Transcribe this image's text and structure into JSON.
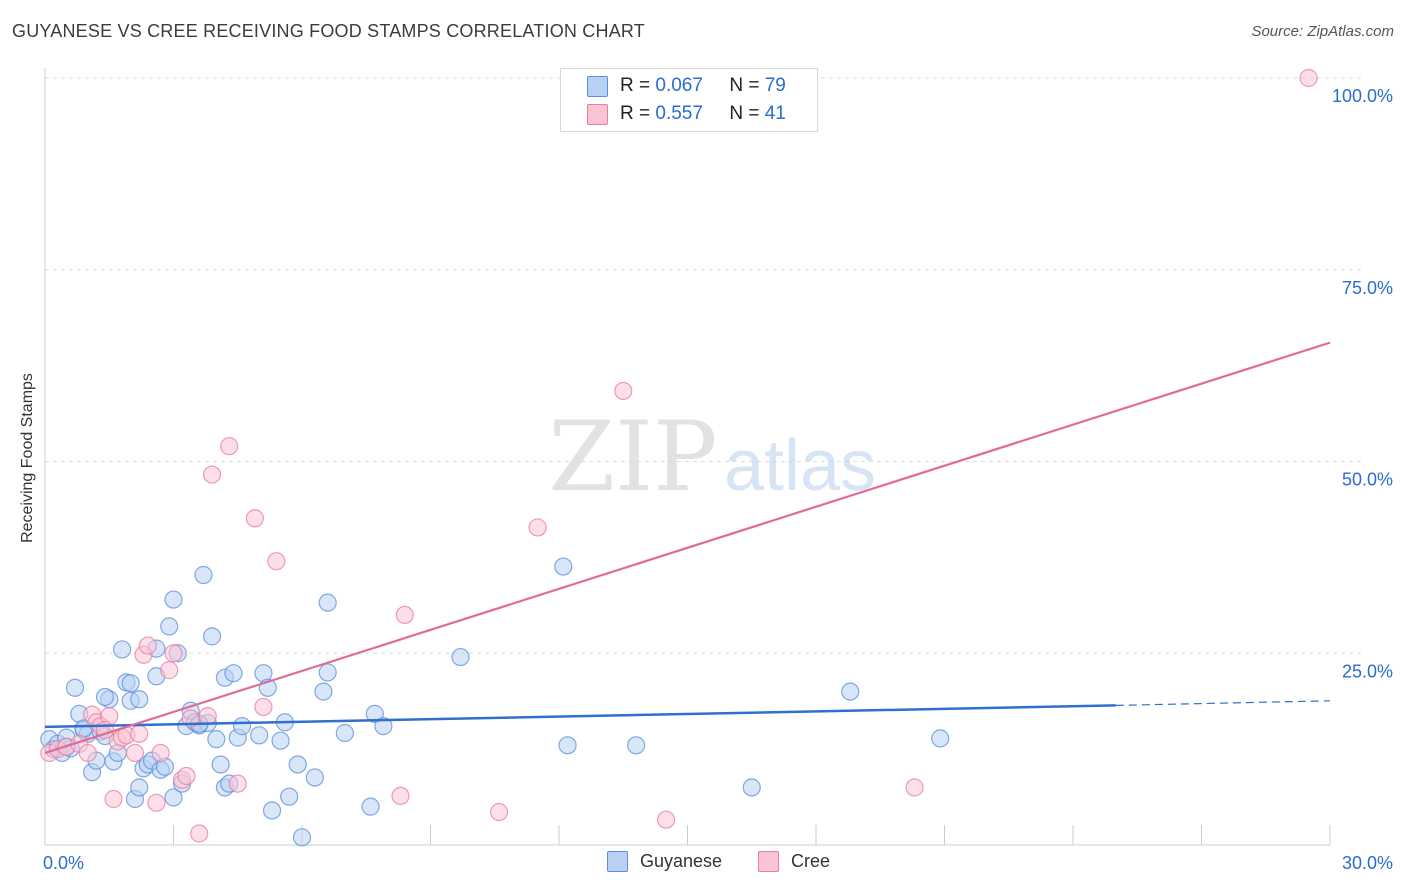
{
  "title": "GUYANESE VS CREE RECEIVING FOOD STAMPS CORRELATION CHART",
  "source": "Source: ZipAtlas.com",
  "watermark": {
    "zip": "ZIP",
    "atlas": "atlas"
  },
  "legend": {
    "rows": [
      {
        "r_label": "R =",
        "r_value": "0.067",
        "n_label": "N =",
        "n_value": "79"
      },
      {
        "r_label": "R =",
        "r_value": "0.557",
        "n_label": "N =",
        "n_value": "41"
      }
    ]
  },
  "colors": {
    "guyanese_fill": "#b8d1f3",
    "guyanese_stroke": "#5a8fdb",
    "guyanese_line": "#2f6fce",
    "cree_fill": "#f9c5d5",
    "cree_stroke": "#e87ea0",
    "cree_line": "#e06b95",
    "accent_text": "#2a6ccf",
    "grid": "#dddddd"
  },
  "chart_data": {
    "type": "scatter",
    "title": "GUYANESE VS CREE RECEIVING FOOD STAMPS CORRELATION CHART",
    "xlabel": "",
    "ylabel": "Receiving Food Stamps",
    "xlim": [
      0,
      30
    ],
    "ylim": [
      0,
      100
    ],
    "x_tick_labels": [
      {
        "value": 0,
        "label": "0.0%"
      },
      {
        "value": 30,
        "label": "30.0%"
      }
    ],
    "y_tick_labels": [
      {
        "value": 25,
        "label": "25.0%"
      },
      {
        "value": 50,
        "label": "50.0%"
      },
      {
        "value": 75,
        "label": "75.0%"
      },
      {
        "value": 100,
        "label": "100.0%"
      }
    ],
    "legend_position": "top-center",
    "series": [
      {
        "name": "Guyanese",
        "R": 0.067,
        "N": 79,
        "trend": {
          "x0": 0,
          "y0": 15.4,
          "x1": 25.0,
          "y1": 18.2,
          "dash_to_x": 30,
          "dash_to_y": 18.8
        },
        "points": [
          [
            0.1,
            13.8
          ],
          [
            0.2,
            12.5
          ],
          [
            0.3,
            13.2
          ],
          [
            0.4,
            12.0
          ],
          [
            0.5,
            14.0
          ],
          [
            0.6,
            12.6
          ],
          [
            0.7,
            20.5
          ],
          [
            0.8,
            17.1
          ],
          [
            0.9,
            15.0
          ],
          [
            1.0,
            14.5
          ],
          [
            1.1,
            9.5
          ],
          [
            1.2,
            11.0
          ],
          [
            1.3,
            14.8
          ],
          [
            1.4,
            14.2
          ],
          [
            1.5,
            19.0
          ],
          [
            1.6,
            10.9
          ],
          [
            1.7,
            12.0
          ],
          [
            1.8,
            25.5
          ],
          [
            1.9,
            21.2
          ],
          [
            2.0,
            21.1
          ],
          [
            2.0,
            18.8
          ],
          [
            2.1,
            6.0
          ],
          [
            2.2,
            19.0
          ],
          [
            2.2,
            7.5
          ],
          [
            2.3,
            10.0
          ],
          [
            2.4,
            10.5
          ],
          [
            2.5,
            11.0
          ],
          [
            2.6,
            25.6
          ],
          [
            2.6,
            22.0
          ],
          [
            2.7,
            9.8
          ],
          [
            2.8,
            10.2
          ],
          [
            2.9,
            28.5
          ],
          [
            3.0,
            32.0
          ],
          [
            3.0,
            6.2
          ],
          [
            3.1,
            25.0
          ],
          [
            3.2,
            8.0
          ],
          [
            3.3,
            15.5
          ],
          [
            3.4,
            17.5
          ],
          [
            3.5,
            16.0
          ],
          [
            3.6,
            15.6
          ],
          [
            3.7,
            35.2
          ],
          [
            3.8,
            15.9
          ],
          [
            3.9,
            27.2
          ],
          [
            4.0,
            13.8
          ],
          [
            4.1,
            10.5
          ],
          [
            4.2,
            21.8
          ],
          [
            4.2,
            7.5
          ],
          [
            4.3,
            8.0
          ],
          [
            4.4,
            22.4
          ],
          [
            4.5,
            14.0
          ],
          [
            4.6,
            15.5
          ],
          [
            5.0,
            14.3
          ],
          [
            5.1,
            22.4
          ],
          [
            5.2,
            20.5
          ],
          [
            5.3,
            4.5
          ],
          [
            5.5,
            13.6
          ],
          [
            5.6,
            16.0
          ],
          [
            5.7,
            6.3
          ],
          [
            5.9,
            10.5
          ],
          [
            6.0,
            1.0
          ],
          [
            6.3,
            8.8
          ],
          [
            6.5,
            20.0
          ],
          [
            6.6,
            22.5
          ],
          [
            6.6,
            31.6
          ],
          [
            7.0,
            14.6
          ],
          [
            7.6,
            5.0
          ],
          [
            7.7,
            17.1
          ],
          [
            7.9,
            15.5
          ],
          [
            9.7,
            24.5
          ],
          [
            12.1,
            36.3
          ],
          [
            12.2,
            13.0
          ],
          [
            13.8,
            13.0
          ],
          [
            16.5,
            7.5
          ],
          [
            18.8,
            20.0
          ],
          [
            20.9,
            13.9
          ],
          [
            0.5,
            12.8
          ],
          [
            1.4,
            19.3
          ],
          [
            0.9,
            15.2
          ],
          [
            3.6,
            15.8
          ]
        ]
      },
      {
        "name": "Cree",
        "R": 0.557,
        "N": 41,
        "trend": {
          "x0": 0,
          "y0": 12.0,
          "x1": 30,
          "y1": 65.5
        },
        "points": [
          [
            0.1,
            12.0
          ],
          [
            0.3,
            12.5
          ],
          [
            0.5,
            12.8
          ],
          [
            0.8,
            13.2
          ],
          [
            1.0,
            12.0
          ],
          [
            1.1,
            17.0
          ],
          [
            1.2,
            16.0
          ],
          [
            1.3,
            15.5
          ],
          [
            1.5,
            16.8
          ],
          [
            1.6,
            6.0
          ],
          [
            1.7,
            13.5
          ],
          [
            1.8,
            14.0
          ],
          [
            1.9,
            14.3
          ],
          [
            2.1,
            12.0
          ],
          [
            2.3,
            24.8
          ],
          [
            2.4,
            26.0
          ],
          [
            2.6,
            5.5
          ],
          [
            2.7,
            12.0
          ],
          [
            2.9,
            22.8
          ],
          [
            3.0,
            25.0
          ],
          [
            3.2,
            8.5
          ],
          [
            3.3,
            9.0
          ],
          [
            3.4,
            16.5
          ],
          [
            3.6,
            1.5
          ],
          [
            3.8,
            16.8
          ],
          [
            3.9,
            48.3
          ],
          [
            4.3,
            52.0
          ],
          [
            4.5,
            8.0
          ],
          [
            4.9,
            42.6
          ],
          [
            5.1,
            18.0
          ],
          [
            5.4,
            37.0
          ],
          [
            8.3,
            6.4
          ],
          [
            8.4,
            30.0
          ],
          [
            10.6,
            4.3
          ],
          [
            11.5,
            41.4
          ],
          [
            13.5,
            59.2
          ],
          [
            14.5,
            3.3
          ],
          [
            20.3,
            7.5
          ],
          [
            29.5,
            100.0
          ],
          [
            2.2,
            14.5
          ],
          [
            1.4,
            15.0
          ]
        ]
      }
    ]
  },
  "bottom_legend": {
    "items": [
      {
        "label": "Guyanese"
      },
      {
        "label": "Cree"
      }
    ]
  }
}
